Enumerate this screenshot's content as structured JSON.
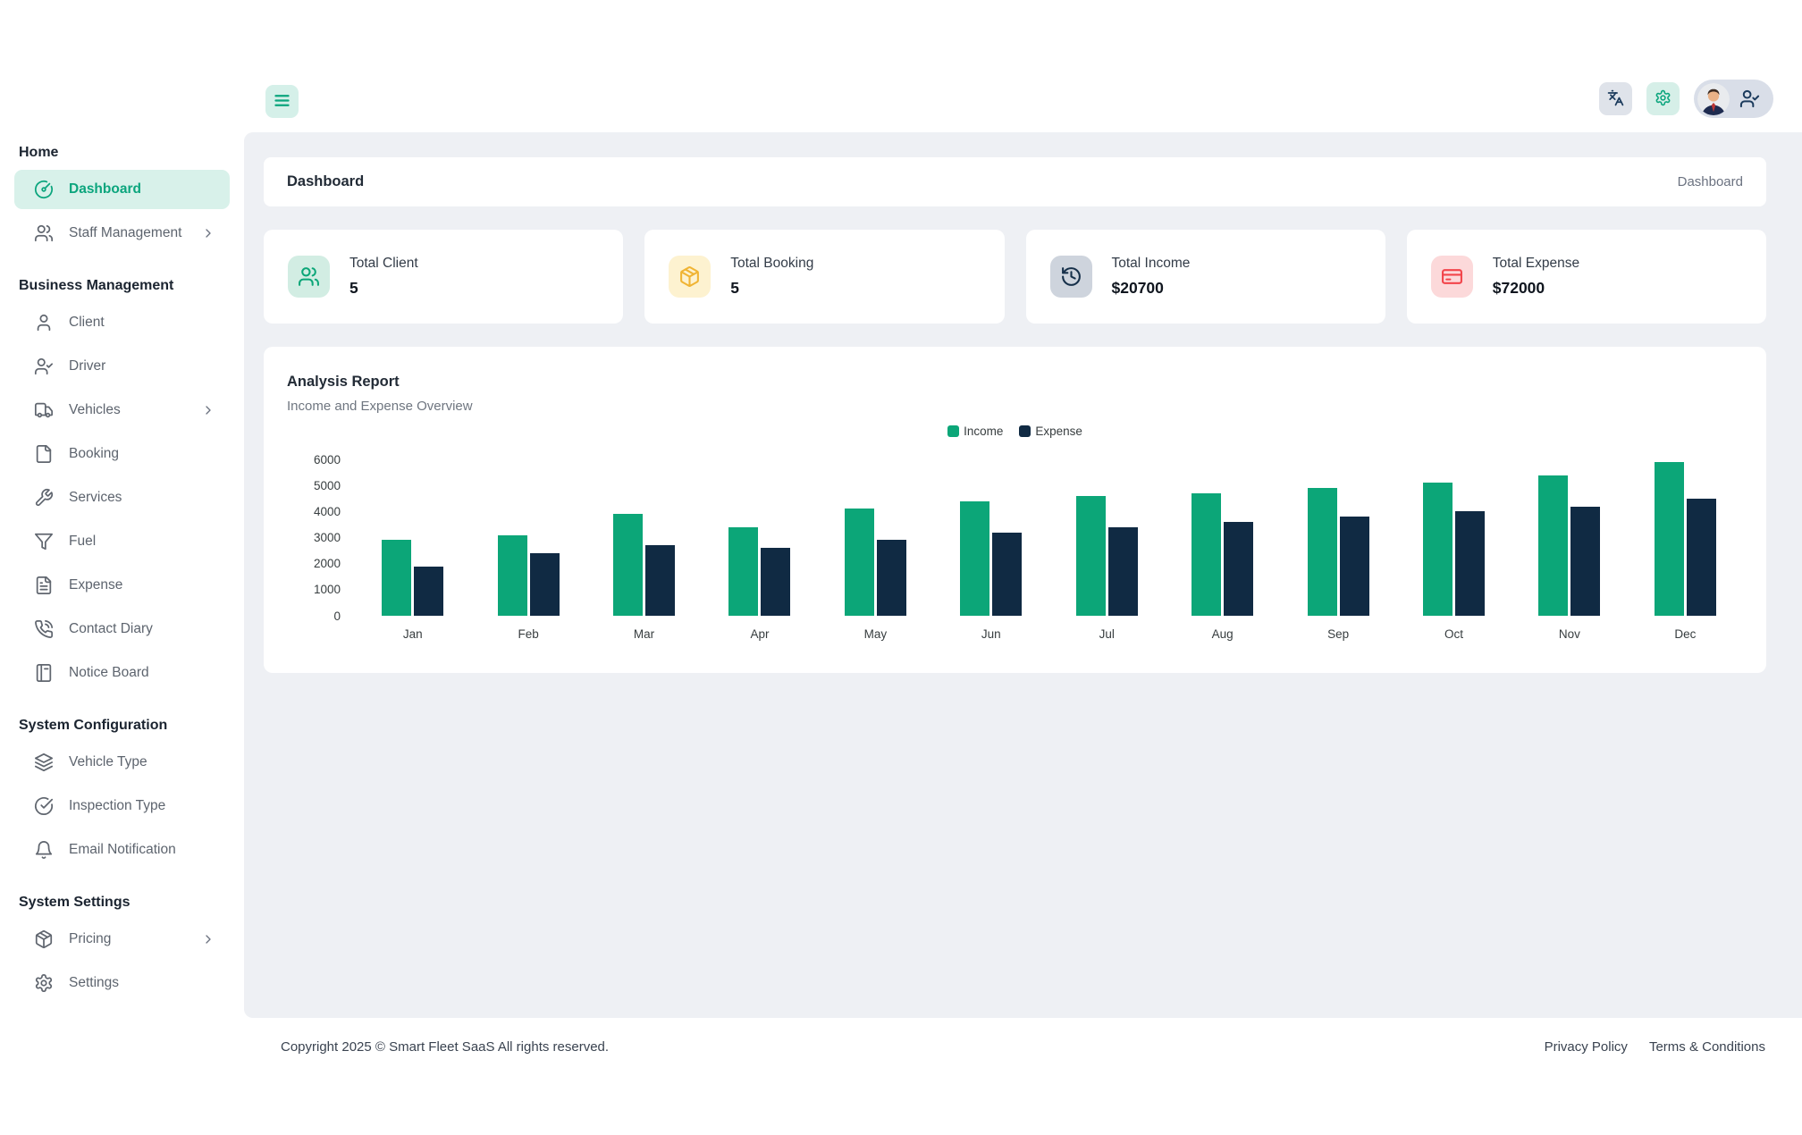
{
  "colors": {
    "accent": "#0ba57d",
    "accent_bg": "#d8f1ea",
    "panel_bg": "#eef0f4",
    "income": "#0ca678",
    "expense": "#102a43"
  },
  "topbar": {
    "menu_icon": "menu-icon",
    "language_icon": "languages-icon",
    "settings_icon": "gear-icon",
    "profile_icon": "user-check-icon"
  },
  "header": {
    "title": "Dashboard",
    "breadcrumb": "Dashboard"
  },
  "sidebar": {
    "sections": [
      {
        "label": "Home",
        "items": [
          {
            "label": "Dashboard",
            "icon": "gauge-icon",
            "active": true
          },
          {
            "label": "Staff Management",
            "icon": "users-icon",
            "chevron": true
          }
        ]
      },
      {
        "label": "Business Management",
        "items": [
          {
            "label": "Client",
            "icon": "user-icon"
          },
          {
            "label": "Driver",
            "icon": "user-check-icon"
          },
          {
            "label": "Vehicles",
            "icon": "truck-icon",
            "chevron": true
          },
          {
            "label": "Booking",
            "icon": "file-icon"
          },
          {
            "label": "Services",
            "icon": "wrench-icon"
          },
          {
            "label": "Fuel",
            "icon": "funnel-icon"
          },
          {
            "label": "Expense",
            "icon": "file-text-icon"
          },
          {
            "label": "Contact Diary",
            "icon": "phone-call-icon"
          },
          {
            "label": "Notice Board",
            "icon": "notebook-icon"
          }
        ]
      },
      {
        "label": "System Configuration",
        "items": [
          {
            "label": "Vehicle Type",
            "icon": "layers-icon"
          },
          {
            "label": "Inspection Type",
            "icon": "circle-check-icon"
          },
          {
            "label": "Email Notification",
            "icon": "bell-icon"
          }
        ]
      },
      {
        "label": "System Settings",
        "items": [
          {
            "label": "Pricing",
            "icon": "package-icon",
            "chevron": true
          },
          {
            "label": "Settings",
            "icon": "gear-icon"
          }
        ]
      }
    ]
  },
  "stats": [
    {
      "label": "Total Client",
      "value": "5",
      "icon": "users-icon",
      "icon_color": "#0ca678",
      "icon_bg": "#d2ede3"
    },
    {
      "label": "Total Booking",
      "value": "5",
      "icon": "package-icon",
      "icon_color": "#f0b434",
      "icon_bg": "#fdf2d0"
    },
    {
      "label": "Total Income",
      "value": "$20700",
      "icon": "history-icon",
      "icon_color": "#16304a",
      "icon_bg": "#ced4dd"
    },
    {
      "label": "Total Expense",
      "value": "$72000",
      "icon": "credit-card-icon",
      "icon_color": "#f2444a",
      "icon_bg": "#fcd9da"
    }
  ],
  "chart_card": {
    "title": "Analysis Report",
    "subtitle": "Income and Expense Overview"
  },
  "chart_data": {
    "type": "bar",
    "title": "Analysis Report",
    "subtitle": "Income and Expense Overview",
    "categories": [
      "Jan",
      "Feb",
      "Mar",
      "Apr",
      "May",
      "Jun",
      "Jul",
      "Aug",
      "Sep",
      "Oct",
      "Nov",
      "Dec"
    ],
    "series": [
      {
        "name": "Income",
        "color": "#0ca678",
        "values": [
          2900,
          3100,
          3900,
          3400,
          4100,
          4400,
          4600,
          4700,
          4900,
          5100,
          5400,
          5900
        ]
      },
      {
        "name": "Expense",
        "color": "#102a43",
        "values": [
          1900,
          2400,
          2700,
          2600,
          2900,
          3200,
          3400,
          3600,
          3800,
          4000,
          4200,
          4500
        ]
      }
    ],
    "ylim": [
      0,
      6000
    ],
    "yticks": [
      0,
      1000,
      2000,
      3000,
      4000,
      5000,
      6000
    ],
    "grid": false,
    "legend_position": "top"
  },
  "footer": {
    "copyright": "Copyright 2025 © Smart Fleet SaaS All rights reserved.",
    "links": [
      "Privacy Policy",
      "Terms & Conditions"
    ]
  }
}
